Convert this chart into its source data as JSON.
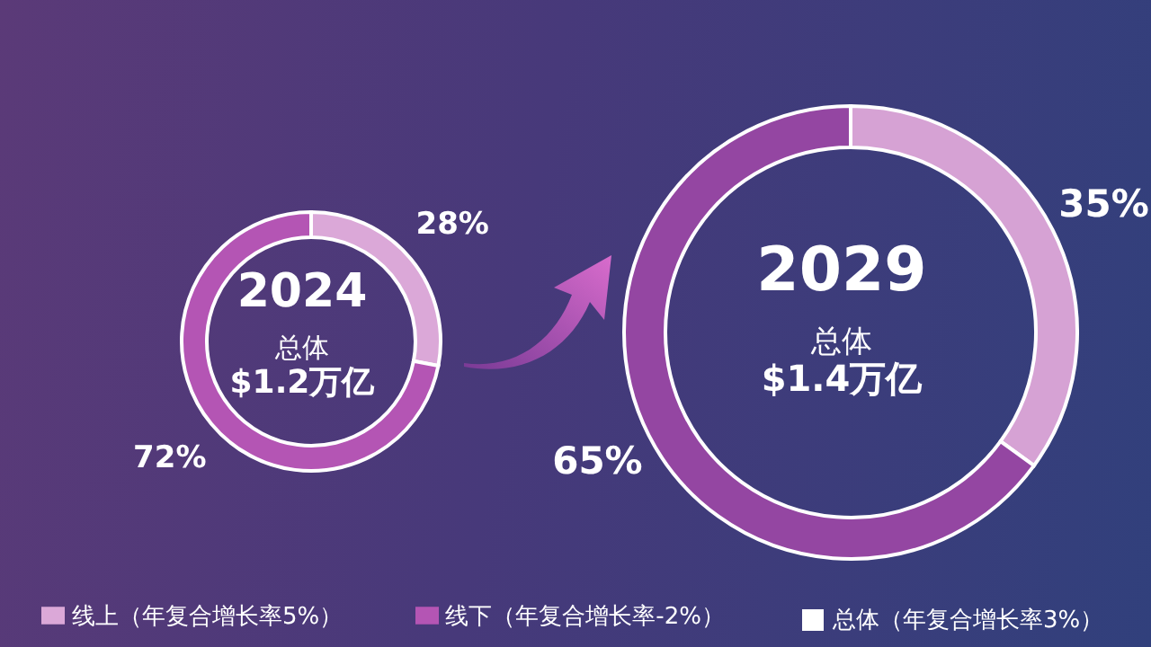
{
  "chart_data": [
    {
      "type": "donut",
      "title": "2024",
      "categories": [
        "线上（年复合增长率5%）",
        "线下（年复合增长率-2%）"
      ],
      "values": [
        28,
        72
      ],
      "colors": [
        "#dba8d8",
        "#b455b4"
      ],
      "value_labels": [
        "28%",
        "72%"
      ],
      "annotations": [
        "总体",
        "$1.2万亿",
        "总体（年复合增长率3%）"
      ],
      "legend": "bottom"
    },
    {
      "type": "donut",
      "title": "2029",
      "categories": [
        null,
        null
      ],
      "values": [
        35,
        65
      ],
      "colors": [
        "#d6a2d4",
        "#9446a2"
      ],
      "value_labels": [
        "35%",
        "65%"
      ],
      "annotations": [
        "总体",
        "$1.4万亿"
      ]
    }
  ]
}
